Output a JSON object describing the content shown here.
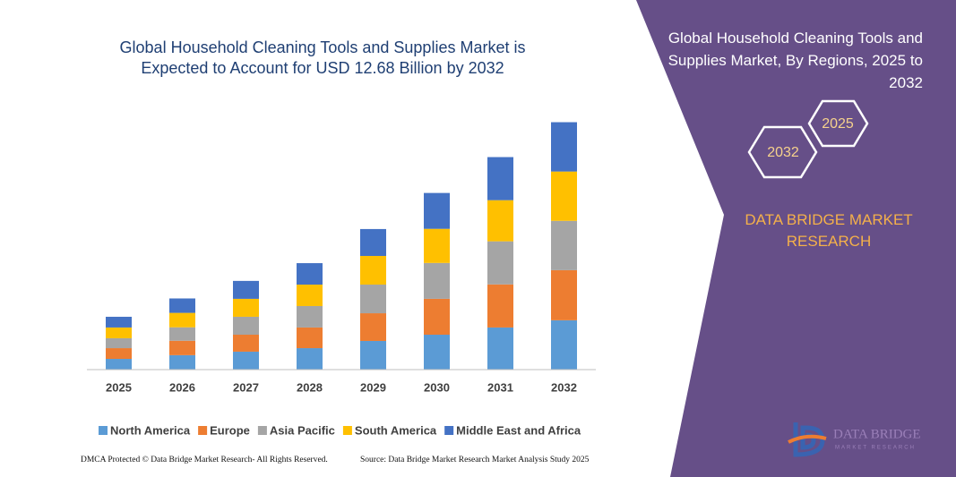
{
  "chart_data": {
    "type": "bar",
    "stacked": true,
    "title": "Global Household Cleaning Tools and Supplies Market is Expected to Account for USD 12.68 Billion by 2032",
    "categories": [
      "2025",
      "2026",
      "2027",
      "2028",
      "2029",
      "2030",
      "2031",
      "2032"
    ],
    "series": [
      {
        "name": "North America",
        "color": "#5b9bd5",
        "values": [
          0.55,
          0.74,
          0.92,
          1.1,
          1.47,
          1.79,
          2.16,
          2.53
        ]
      },
      {
        "name": "Europe",
        "color": "#ed7d31",
        "values": [
          0.55,
          0.74,
          0.87,
          1.06,
          1.42,
          1.84,
          2.21,
          2.57
        ]
      },
      {
        "name": "Asia Pacific",
        "color": "#a5a5a5",
        "values": [
          0.51,
          0.69,
          0.92,
          1.1,
          1.47,
          1.84,
          2.21,
          2.53
        ]
      },
      {
        "name": "South America",
        "color": "#ffc000",
        "values": [
          0.55,
          0.74,
          0.92,
          1.1,
          1.47,
          1.75,
          2.11,
          2.53
        ]
      },
      {
        "name": "Middle East and Africa",
        "color": "#4472c4",
        "values": [
          0.55,
          0.74,
          0.92,
          1.1,
          1.38,
          1.84,
          2.21,
          2.53
        ]
      }
    ],
    "ylim": [
      0,
      14
    ]
  },
  "panel": {
    "title": "Global Household Cleaning Tools and Supplies Market, By Regions, 2025 to 2032",
    "hexagons": [
      "2025",
      "2032"
    ],
    "brand": "DATA BRIDGE MARKET RESEARCH"
  },
  "footer": {
    "left": "DMCA Protected © Data Bridge Market Research- All Rights Reserved.",
    "right": "Source: Data Bridge Market Research Market Analysis Study 2025"
  },
  "logo": {
    "name": "DATA BRIDGE",
    "tagline": "MARKET RESEARCH"
  }
}
